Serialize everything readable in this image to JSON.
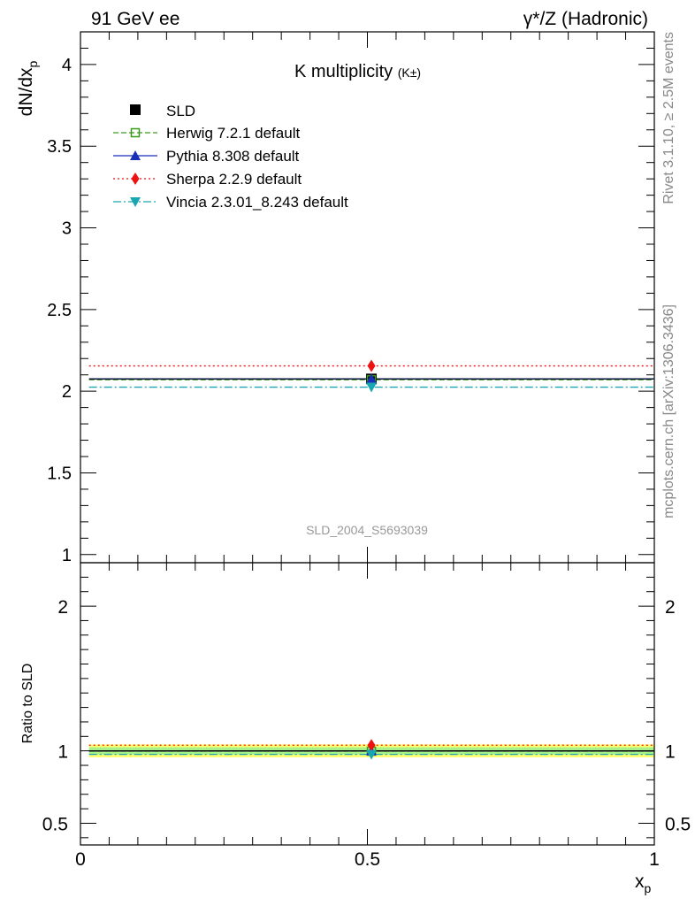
{
  "header": {
    "left": "91 GeV ee",
    "right": "γ*/Z (Hadronic)"
  },
  "side_labels": {
    "rivet": "Rivet 3.1.10, ≥ 2.5M events",
    "mcplots": "mcplots.cern.ch [arXiv:1306.3436]"
  },
  "colors": {
    "data": "#000000",
    "herwig": "#3a9a1c",
    "pythia": "#1a2fb8",
    "sherpa": "#ee1111",
    "vincia": "#1aa6b0",
    "band_inner": "#a8f08a",
    "band_outer": "#ffff70"
  },
  "chart_data": [
    {
      "type": "line",
      "title": "K multiplicity",
      "title_suffix": "(K±)",
      "ylabel_main": "dN/dx",
      "ylabel_sub": "p",
      "xlabel_main": "x",
      "xlabel_sub": "p",
      "watermark": "SLD_2004_S5693039",
      "xlim": [
        0,
        1
      ],
      "ylim": [
        0.95,
        4.2
      ],
      "yticks": [
        1,
        1.5,
        2,
        2.5,
        3,
        3.5,
        4
      ],
      "ytick_labels": [
        "1",
        "1.5",
        "2",
        "2.5",
        "3",
        "3.5",
        "4"
      ],
      "x_range": [
        0.015,
        1.0
      ],
      "data_point": {
        "name": "SLD",
        "x": 0.507,
        "y": 2.075,
        "yerr": 0.03
      },
      "series": [
        {
          "key": "herwig",
          "name": "Herwig 7.2.1 default",
          "y": 2.07,
          "marker": "open-square",
          "dash": "6,3"
        },
        {
          "key": "pythia",
          "name": "Pythia 8.308 default",
          "y": 2.075,
          "marker": "triangle-up",
          "dash": ""
        },
        {
          "key": "sherpa",
          "name": "Sherpa 2.2.9 default",
          "y": 2.155,
          "marker": "diamond",
          "dash": "2,3"
        },
        {
          "key": "vincia",
          "name": "Vincia 2.3.01_8.243 default",
          "y": 2.025,
          "marker": "triangle-down",
          "dash": "9,3,2,3"
        }
      ],
      "legend_position": "top-left",
      "legend_data_label": "SLD"
    },
    {
      "type": "line",
      "ylabel": "Ratio to SLD",
      "xlim": [
        0,
        1
      ],
      "ylim": [
        0.35,
        2.3
      ],
      "yticks": [
        0.5,
        1,
        2
      ],
      "ytick_labels": [
        "0.5",
        "1",
        "2"
      ],
      "xticks": [
        0,
        0.5,
        1
      ],
      "xtick_labels": [
        "0",
        "0.5",
        "1"
      ],
      "band_inner": [
        0.975,
        1.025
      ],
      "band_outer": [
        0.955,
        1.045
      ],
      "series": [
        {
          "key": "herwig",
          "value": 0.998
        },
        {
          "key": "pythia",
          "value": 1.0
        },
        {
          "key": "sherpa",
          "value": 1.039
        },
        {
          "key": "vincia",
          "value": 0.976
        }
      ]
    }
  ]
}
